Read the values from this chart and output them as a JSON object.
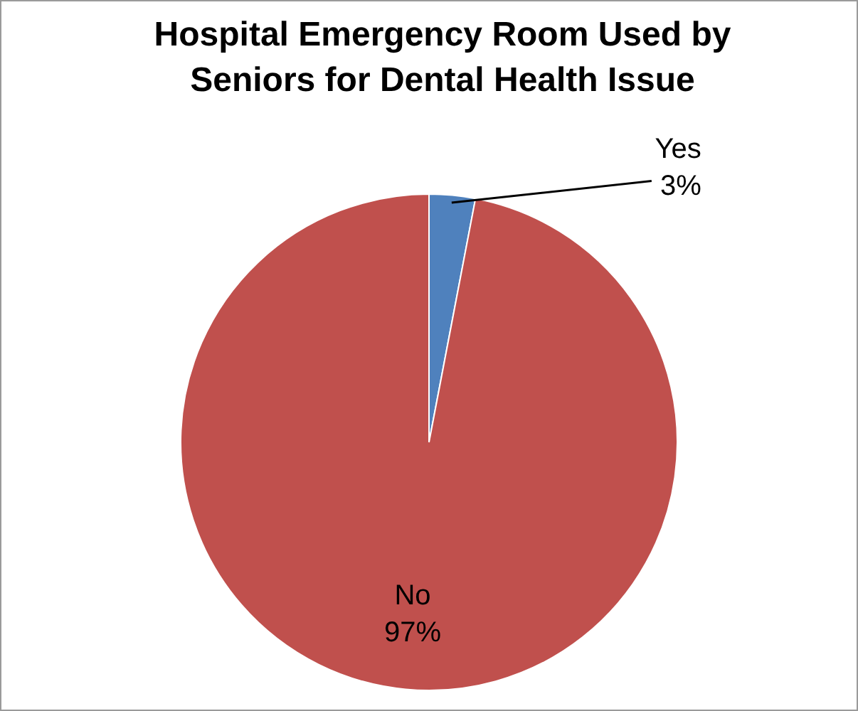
{
  "chart_data": {
    "type": "pie",
    "title": "Hospital Emergency Room Used by Seniors for Dental Health Issue",
    "categories": [
      "Yes",
      "No"
    ],
    "values": [
      3,
      97
    ],
    "value_labels": [
      "3%",
      "97%"
    ],
    "colors": [
      "#4f81bd",
      "#c0504d"
    ],
    "legend": false
  }
}
